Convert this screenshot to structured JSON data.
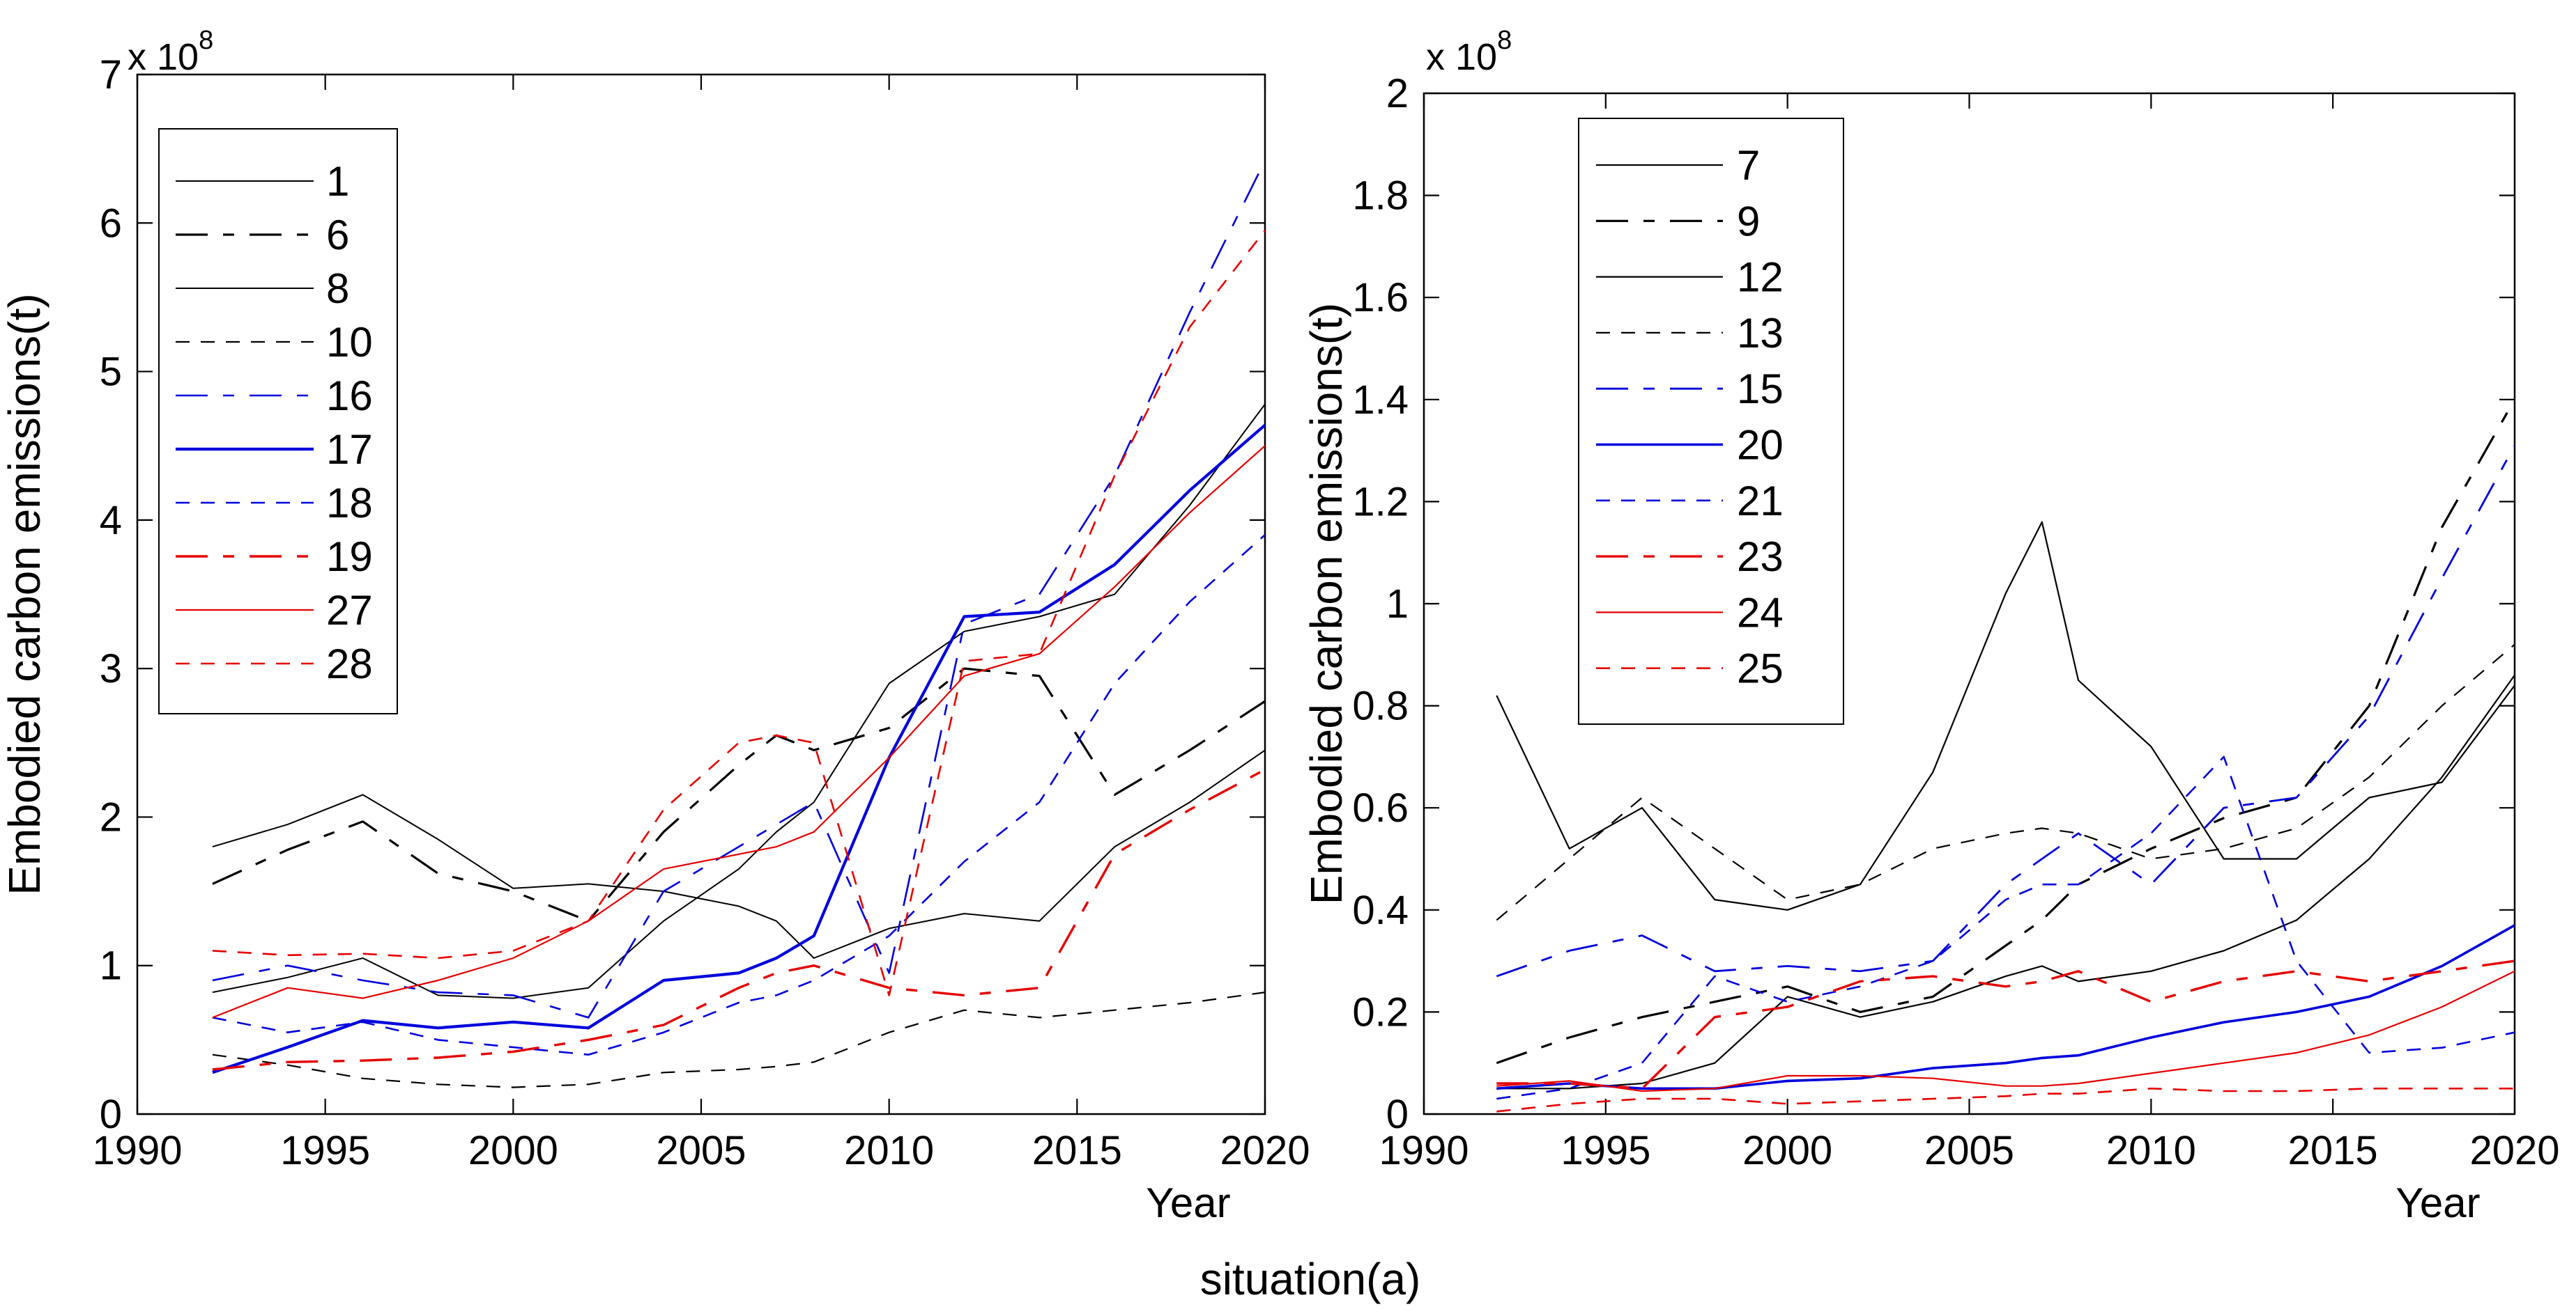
{
  "caption": "situation(a)",
  "chart_data": [
    {
      "id": "panel-left",
      "type": "line",
      "xlabel": "Year",
      "ylabel": "Embodied carbon emissions(t)",
      "scale_label": "x 10",
      "scale_exponent": "8",
      "xlim": [
        1990,
        2020
      ],
      "ylim": [
        0,
        7
      ],
      "grid": false,
      "legend_position": "upper-left",
      "xticks": {
        "values": [
          1990,
          1995,
          2000,
          2005,
          2010,
          2015,
          2020
        ],
        "labels": [
          "1990",
          "1995",
          "2000",
          "2005",
          "2010",
          "2015",
          "2020"
        ]
      },
      "yticks": {
        "values": [
          0,
          1,
          2,
          3,
          4,
          5,
          6,
          7
        ],
        "labels": [
          "0",
          "1",
          "2",
          "3",
          "4",
          "5",
          "6",
          "7"
        ]
      },
      "x": [
        1992,
        1994,
        1996,
        1998,
        2000,
        2002,
        2004,
        2006,
        2007,
        2008,
        2010,
        2012,
        2014,
        2016,
        2018,
        2020
      ],
      "series": [
        {
          "name": "1",
          "color": "#000000",
          "style": "solid",
          "width": 2.0,
          "values": [
            1.8,
            1.95,
            2.15,
            1.85,
            1.52,
            1.55,
            1.5,
            1.4,
            1.3,
            1.05,
            1.25,
            1.35,
            1.3,
            1.8,
            2.1,
            2.45
          ]
        },
        {
          "name": "6",
          "color": "#000000",
          "style": "dashdot",
          "width": 3.2,
          "values": [
            1.55,
            1.78,
            1.97,
            1.62,
            1.5,
            1.3,
            1.9,
            2.35,
            2.55,
            2.45,
            2.6,
            3.0,
            2.95,
            2.15,
            2.45,
            2.78
          ]
        },
        {
          "name": "8",
          "color": "#000000",
          "style": "solid",
          "width": 2.0,
          "values": [
            0.82,
            0.92,
            1.05,
            0.8,
            0.78,
            0.85,
            1.3,
            1.65,
            1.9,
            2.1,
            2.9,
            3.25,
            3.35,
            3.5,
            4.1,
            4.78
          ]
        },
        {
          "name": "10",
          "color": "#000000",
          "style": "dashed",
          "width": 2.2,
          "values": [
            0.4,
            0.33,
            0.24,
            0.2,
            0.18,
            0.2,
            0.28,
            0.3,
            0.32,
            0.35,
            0.55,
            0.7,
            0.65,
            0.7,
            0.75,
            0.82
          ]
        },
        {
          "name": "16",
          "color": "#0000dd",
          "style": "dashdot",
          "width": 2.6,
          "values": [
            0.9,
            1.0,
            0.9,
            0.82,
            0.8,
            0.65,
            1.5,
            1.8,
            1.95,
            2.1,
            0.95,
            3.3,
            3.5,
            4.3,
            5.4,
            6.42
          ]
        },
        {
          "name": "17",
          "color": "#0000dd",
          "style": "solid",
          "width": 4.2,
          "values": [
            0.28,
            0.45,
            0.63,
            0.58,
            0.62,
            0.58,
            0.9,
            0.95,
            1.05,
            1.2,
            2.4,
            3.35,
            3.38,
            3.7,
            4.2,
            4.64
          ]
        },
        {
          "name": "18",
          "color": "#0000dd",
          "style": "dashed",
          "width": 2.6,
          "values": [
            0.65,
            0.55,
            0.62,
            0.5,
            0.45,
            0.4,
            0.55,
            0.75,
            0.8,
            0.9,
            1.2,
            1.7,
            2.1,
            2.9,
            3.45,
            3.9
          ]
        },
        {
          "name": "19",
          "color": "#e60000",
          "style": "dashdot",
          "width": 3.4,
          "values": [
            0.3,
            0.35,
            0.36,
            0.38,
            0.42,
            0.5,
            0.6,
            0.85,
            0.95,
            1.0,
            0.85,
            0.8,
            0.85,
            1.75,
            2.05,
            2.32
          ]
        },
        {
          "name": "27",
          "color": "#e60000",
          "style": "solid",
          "width": 2.2,
          "values": [
            0.65,
            0.85,
            0.78,
            0.9,
            1.05,
            1.3,
            1.65,
            1.75,
            1.8,
            1.9,
            2.4,
            2.95,
            3.1,
            3.55,
            4.05,
            4.5
          ]
        },
        {
          "name": "28",
          "color": "#e60000",
          "style": "dashed",
          "width": 2.6,
          "values": [
            1.1,
            1.07,
            1.08,
            1.05,
            1.1,
            1.3,
            2.05,
            2.5,
            2.55,
            2.5,
            0.8,
            3.05,
            3.1,
            4.3,
            5.3,
            5.95
          ]
        }
      ]
    },
    {
      "id": "panel-right",
      "type": "line",
      "xlabel": "Year",
      "ylabel": "Embodied carbon emissions(t)",
      "scale_label": "x 10",
      "scale_exponent": "8",
      "xlim": [
        1990,
        2020
      ],
      "ylim": [
        0,
        2
      ],
      "grid": false,
      "legend_position": "upper-center",
      "xticks": {
        "values": [
          1990,
          1995,
          2000,
          2005,
          2010,
          2015,
          2020
        ],
        "labels": [
          "1990",
          "1995",
          "2000",
          "2005",
          "2010",
          "2015",
          "2020"
        ]
      },
      "yticks": {
        "values": [
          0,
          0.2,
          0.4,
          0.6,
          0.8,
          1,
          1.2,
          1.4,
          1.6,
          1.8,
          2
        ],
        "labels": [
          "0",
          "0.2",
          "0.4",
          "0.6",
          "0.8",
          "1",
          "1.2",
          "1.4",
          "1.6",
          "1.8",
          "2"
        ]
      },
      "x": [
        1992,
        1994,
        1996,
        1998,
        2000,
        2002,
        2004,
        2006,
        2007,
        2008,
        2010,
        2012,
        2014,
        2016,
        2018,
        2020
      ],
      "series": [
        {
          "name": "7",
          "color": "#000000",
          "style": "solid",
          "width": 2.2,
          "values": [
            0.82,
            0.52,
            0.6,
            0.42,
            0.4,
            0.45,
            0.67,
            1.02,
            1.16,
            0.85,
            0.72,
            0.5,
            0.5,
            0.62,
            0.65,
            0.84
          ]
        },
        {
          "name": "9",
          "color": "#000000",
          "style": "dashdot",
          "width": 3.2,
          "values": [
            0.1,
            0.15,
            0.19,
            0.22,
            0.25,
            0.2,
            0.23,
            0.33,
            0.38,
            0.45,
            0.52,
            0.58,
            0.62,
            0.8,
            1.15,
            1.4
          ]
        },
        {
          "name": "12",
          "color": "#000000",
          "style": "solid",
          "width": 2.2,
          "values": [
            0.05,
            0.05,
            0.06,
            0.1,
            0.23,
            0.19,
            0.22,
            0.27,
            0.29,
            0.26,
            0.28,
            0.32,
            0.38,
            0.5,
            0.66,
            0.86
          ]
        },
        {
          "name": "13",
          "color": "#000000",
          "style": "dashed",
          "width": 2.2,
          "values": [
            0.38,
            0.5,
            0.62,
            0.52,
            0.42,
            0.45,
            0.52,
            0.55,
            0.56,
            0.55,
            0.5,
            0.52,
            0.56,
            0.66,
            0.8,
            0.92
          ]
        },
        {
          "name": "15",
          "color": "#0000dd",
          "style": "dashdot",
          "width": 2.8,
          "values": [
            0.27,
            0.32,
            0.35,
            0.28,
            0.29,
            0.28,
            0.3,
            0.45,
            0.5,
            0.55,
            0.45,
            0.6,
            0.62,
            0.78,
            1.05,
            1.31
          ]
        },
        {
          "name": "20",
          "color": "#0000dd",
          "style": "solid",
          "width": 3.6,
          "values": [
            0.05,
            0.06,
            0.05,
            0.05,
            0.065,
            0.07,
            0.09,
            0.1,
            0.11,
            0.115,
            0.15,
            0.18,
            0.2,
            0.23,
            0.29,
            0.37
          ]
        },
        {
          "name": "21",
          "color": "#0000dd",
          "style": "dashed",
          "width": 2.6,
          "values": [
            0.03,
            0.05,
            0.1,
            0.27,
            0.22,
            0.25,
            0.3,
            0.42,
            0.45,
            0.45,
            0.55,
            0.7,
            0.3,
            0.12,
            0.13,
            0.16
          ]
        },
        {
          "name": "23",
          "color": "#e60000",
          "style": "dashdot",
          "width": 3.4,
          "values": [
            0.06,
            0.06,
            0.05,
            0.19,
            0.21,
            0.26,
            0.27,
            0.25,
            0.26,
            0.28,
            0.22,
            0.26,
            0.28,
            0.26,
            0.28,
            0.3
          ]
        },
        {
          "name": "24",
          "color": "#e60000",
          "style": "solid",
          "width": 2.2,
          "values": [
            0.055,
            0.065,
            0.045,
            0.05,
            0.075,
            0.075,
            0.07,
            0.055,
            0.055,
            0.06,
            0.08,
            0.1,
            0.12,
            0.155,
            0.21,
            0.28
          ]
        },
        {
          "name": "25",
          "color": "#e60000",
          "style": "dashed",
          "width": 2.6,
          "values": [
            0.005,
            0.02,
            0.03,
            0.03,
            0.02,
            0.025,
            0.03,
            0.035,
            0.04,
            0.04,
            0.05,
            0.045,
            0.045,
            0.05,
            0.05,
            0.05
          ]
        }
      ]
    }
  ]
}
